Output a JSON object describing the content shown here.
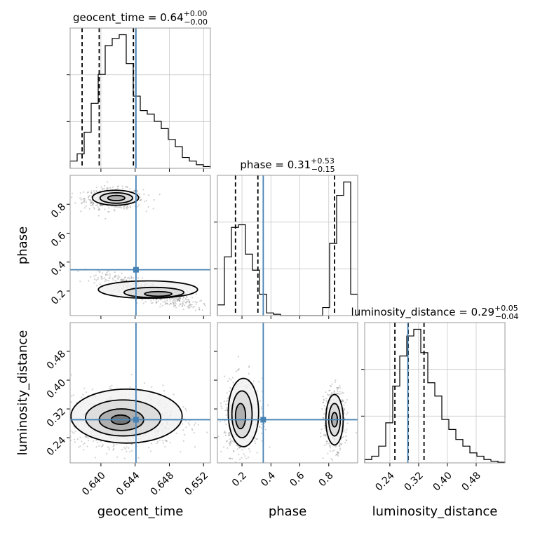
{
  "chart_data": {
    "type": "corner",
    "parameters": [
      "geocent_time",
      "phase",
      "luminosity_distance"
    ],
    "axis_labels": [
      "geocent_time",
      "phase",
      "luminosity_distance"
    ],
    "ranges": {
      "geocent_time": [
        0.6364,
        0.6528
      ],
      "phase": [
        0.03,
        1.0
      ],
      "luminosity_distance": [
        0.17,
        0.56
      ]
    },
    "ticks": {
      "geocent_time": [
        "0.640",
        "0.644",
        "0.648",
        "0.652"
      ],
      "phase": [
        "0.2",
        "0.4",
        "0.6",
        "0.8"
      ],
      "luminosity_distance": [
        "0.24",
        "0.32",
        "0.40",
        "0.48"
      ]
    },
    "truths": {
      "geocent_time": 0.6441,
      "phase": 0.347,
      "luminosity_distance": 0.29
    },
    "titles": [
      {
        "param": "geocent_time",
        "label": "geocent_time = 0.64",
        "plus": "+0.00",
        "minus": "−0.00"
      },
      {
        "param": "phase",
        "label": "phase = 0.31",
        "plus": "+0.53",
        "minus": "−0.15"
      },
      {
        "param": "luminosity_distance",
        "label": "luminosity_distance = 0.29",
        "plus": "+0.05",
        "minus": "−0.04"
      }
    ],
    "quantiles": {
      "geocent_time": [
        0.6378,
        0.6398,
        0.6438
      ],
      "phase": [
        0.155,
        0.31,
        0.84
      ],
      "luminosity_distance": [
        0.254,
        0.291,
        0.335
      ]
    },
    "histograms": {
      "geocent_time": [
        2,
        4,
        10,
        18,
        26,
        34,
        36,
        37,
        29,
        20,
        16,
        15,
        13,
        11,
        8,
        6,
        3,
        2,
        1,
        0.5
      ],
      "phase": [
        4,
        22,
        33,
        34,
        23,
        17,
        8,
        1,
        0.5,
        0,
        0,
        0,
        0,
        0,
        0,
        3,
        27,
        45,
        50,
        8
      ],
      "luminosity_distance": [
        1,
        2,
        5,
        12,
        23,
        32,
        38,
        40,
        33,
        24,
        20,
        13,
        10,
        7,
        5,
        3,
        2,
        1,
        0.5,
        0.2
      ]
    },
    "grid": true
  }
}
